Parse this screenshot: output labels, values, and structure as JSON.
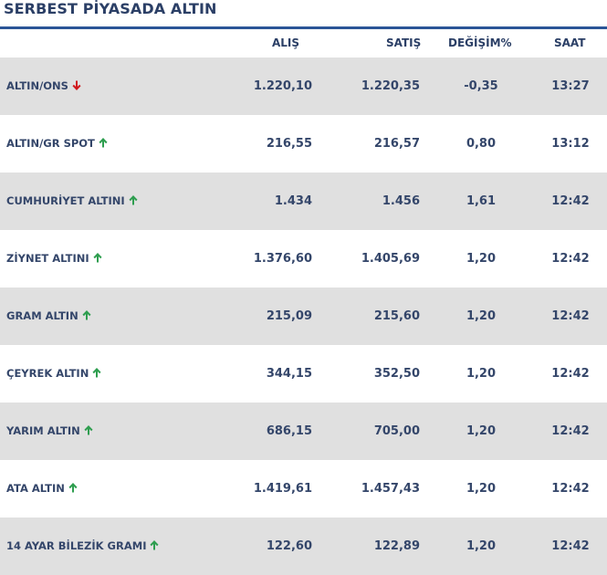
{
  "header": {
    "title": "SERBEST PİYASADA ALTIN"
  },
  "table": {
    "columns": [
      "ALIŞ",
      "SATIŞ",
      "DEĞİŞİM%",
      "SAAT"
    ],
    "rows": [
      [
        "ALTIN/ONS",
        "1.220,10",
        "1.220,35",
        "-0,35",
        "13:27"
      ],
      [
        "ALTIN/GR SPOT",
        "216,55",
        "216,57",
        "0,80",
        "13:12"
      ],
      [
        "CUMHURİYET ALTINI",
        "1.434",
        "1.456",
        "1,61",
        "12:42"
      ],
      [
        "ZİYNET ALTINI",
        "1.376,60",
        "1.405,69",
        "1,20",
        "12:42"
      ],
      [
        "GRAM ALTIN",
        "215,09",
        "215,60",
        "1,20",
        "12:42"
      ],
      [
        "ÇEYREK ALTIN",
        "344,15",
        "352,50",
        "1,20",
        "12:42"
      ],
      [
        "YARIM ALTIN",
        "686,15",
        "705,00",
        "1,20",
        "12:42"
      ],
      [
        "ATA ALTIN",
        "1.419,61",
        "1.457,43",
        "1,20",
        "12:42"
      ],
      [
        "14 AYAR BİLEZİK GRAMI",
        "122,60",
        "122,89",
        "1,20",
        "12:42"
      ]
    ]
  }
}
